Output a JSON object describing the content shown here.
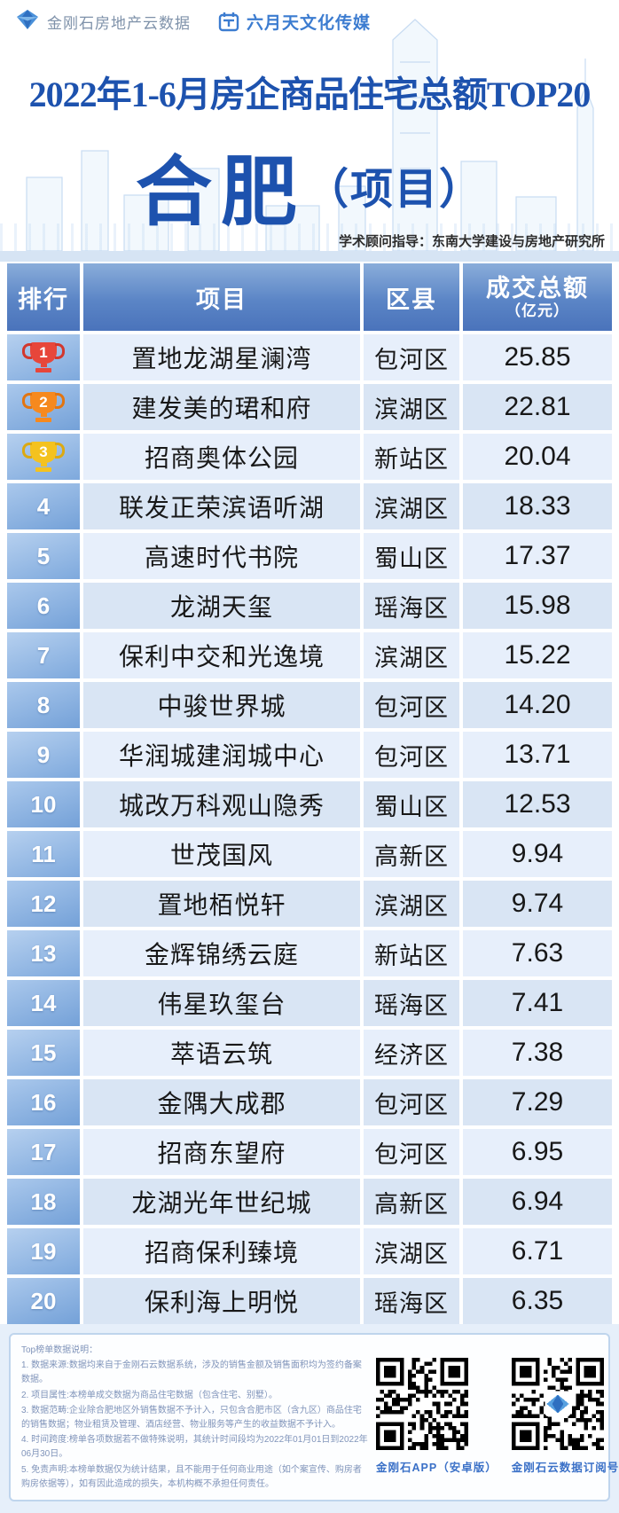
{
  "brand": {
    "logo1_text": "金刚石房地产云数据",
    "logo2_text": "六月天文化传媒"
  },
  "title": {
    "line1": "2022年1-6月房企商品住宅总额TOP20",
    "city": "合肥",
    "scope": "（项目）",
    "advisor": "学术顾问指导：东南大学建设与房地产研究所"
  },
  "table_headers": {
    "rank": "排行",
    "project": "项目",
    "district": "区县",
    "value": "成交总额",
    "value_unit": "（亿元）"
  },
  "chart_data": {
    "type": "table",
    "title": "2022年1-6月房企商品住宅总额TOP20 合肥（项目）",
    "columns": [
      "排行",
      "项目",
      "区县",
      "成交总额（亿元）"
    ],
    "rows": [
      {
        "rank": 1,
        "project": "置地龙湖星澜湾",
        "district": "包河区",
        "value": "25.85"
      },
      {
        "rank": 2,
        "project": "建发美的珺和府",
        "district": "滨湖区",
        "value": "22.81"
      },
      {
        "rank": 3,
        "project": "招商奥体公园",
        "district": "新站区",
        "value": "20.04"
      },
      {
        "rank": 4,
        "project": "联发正荣滨语听湖",
        "district": "滨湖区",
        "value": "18.33"
      },
      {
        "rank": 5,
        "project": "高速时代书院",
        "district": "蜀山区",
        "value": "17.37"
      },
      {
        "rank": 6,
        "project": "龙湖天玺",
        "district": "瑶海区",
        "value": "15.98"
      },
      {
        "rank": 7,
        "project": "保利中交和光逸境",
        "district": "滨湖区",
        "value": "15.22"
      },
      {
        "rank": 8,
        "project": "中骏世界城",
        "district": "包河区",
        "value": "14.20"
      },
      {
        "rank": 9,
        "project": "华润城建润城中心",
        "district": "包河区",
        "value": "13.71"
      },
      {
        "rank": 10,
        "project": "城改万科观山隐秀",
        "district": "蜀山区",
        "value": "12.53"
      },
      {
        "rank": 11,
        "project": "世茂国风",
        "district": "高新区",
        "value": "9.94"
      },
      {
        "rank": 12,
        "project": "置地栢悦轩",
        "district": "滨湖区",
        "value": "9.74"
      },
      {
        "rank": 13,
        "project": "金辉锦绣云庭",
        "district": "新站区",
        "value": "7.63"
      },
      {
        "rank": 14,
        "project": "伟星玖玺台",
        "district": "瑶海区",
        "value": "7.41"
      },
      {
        "rank": 15,
        "project": "萃语云筑",
        "district": "经济区",
        "value": "7.38"
      },
      {
        "rank": 16,
        "project": "金隅大成郡",
        "district": "包河区",
        "value": "7.29"
      },
      {
        "rank": 17,
        "project": "招商东望府",
        "district": "包河区",
        "value": "6.95"
      },
      {
        "rank": 18,
        "project": "龙湖光年世纪城",
        "district": "高新区",
        "value": "6.94"
      },
      {
        "rank": 19,
        "project": "招商保利臻境",
        "district": "滨湖区",
        "value": "6.71"
      },
      {
        "rank": 20,
        "project": "保利海上明悦",
        "district": "瑶海区",
        "value": "6.35"
      }
    ]
  },
  "footer": {
    "notes_title": "Top榜单数据说明：",
    "notes": [
      "1. 数据来源:数据均来自于金刚石云数据系统，涉及的销售金额及销售面积均为签约备案数据。",
      "2. 项目属性:本榜单成交数据为商品住宅数据（包含住宅、别墅）。",
      "3. 数据范畴:企业除合肥地区外销售数据不予计入，只包含合肥市区（含九区）商品住宅的销售数据；物业租赁及管理、酒店经营、物业服务等产生的收益数据不予计入。",
      "4. 时间跨度:榜单各项数据若不做特殊说明，其统计时间段均为2022年01月01日到2022年06月30日。",
      "5. 免责声明:本榜单数据仅为统计结果，且不能用于任何商业用途（如个案宣传、购房者购房依据等），如有因此造成的损失，本机构概不承担任何责任。"
    ],
    "qr1_label": "金刚石APP（安卓版）",
    "qr2_label": "金刚石云数据订阅号"
  },
  "colors": {
    "accent_blue": "#1d52ae",
    "header_blue": "#4a73bb",
    "row_light": "#e7effb",
    "row_alt": "#d9e5f4",
    "medal_gold": "#e7463a",
    "medal_silver": "#f6891e",
    "medal_bronze": "#f4c21f"
  }
}
